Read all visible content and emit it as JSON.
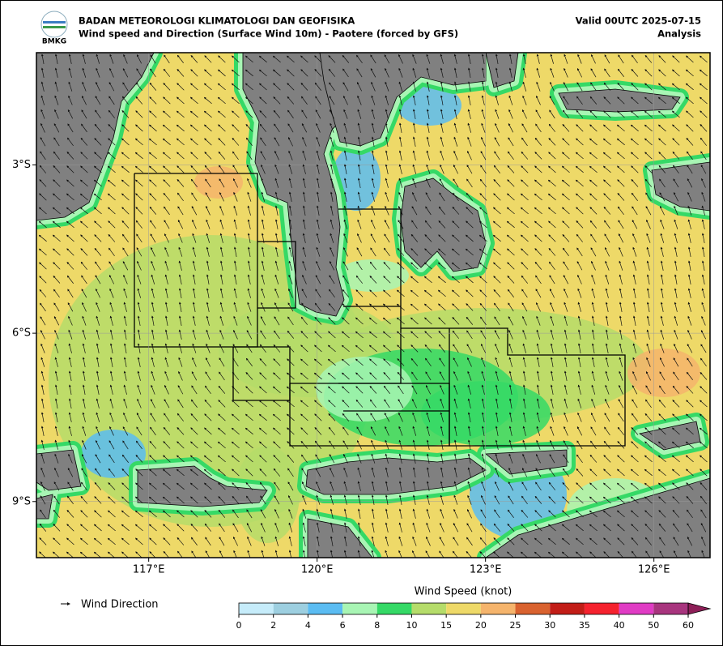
{
  "header": {
    "agency": "BADAN METEOROLOGI KLIMATOLOGI DAN GEOFISIKA",
    "title": "Wind speed and Direction (Surface Wind 10m) - Paotere (forced by GFS)",
    "valid": "Valid 00UTC 2025-07-15",
    "mode": "Analysis",
    "logo": "BMKG"
  },
  "map": {
    "xlim": [
      115,
      127
    ],
    "ylim": [
      -10,
      -1
    ],
    "xticks": [
      {
        "value": 117,
        "label": "117°E"
      },
      {
        "value": 120,
        "label": "120°E"
      },
      {
        "value": 123,
        "label": "123°E"
      },
      {
        "value": 126,
        "label": "126°E"
      }
    ],
    "yticks": [
      {
        "value": -3,
        "label": "3°S"
      },
      {
        "value": -6,
        "label": "6°S"
      },
      {
        "value": -9,
        "label": "9°S"
      }
    ],
    "grid": true
  },
  "legend": {
    "label": "Wind Direction"
  },
  "colorbar": {
    "title": "Wind Speed (knot)",
    "ticks": [
      0,
      2,
      4,
      6,
      8,
      10,
      15,
      20,
      25,
      30,
      35,
      40,
      50,
      60
    ],
    "colors": [
      "#c6ecfa",
      "#9dcfe0",
      "#5bbcf2",
      "#a8f5b4",
      "#35d966",
      "#b5dc6a",
      "#eed968",
      "#f5b46c",
      "#d9622f",
      "#c21d17",
      "#f5222e",
      "#e03cc4",
      "#a8357e"
    ],
    "extend_color": "#8e1f58"
  }
}
